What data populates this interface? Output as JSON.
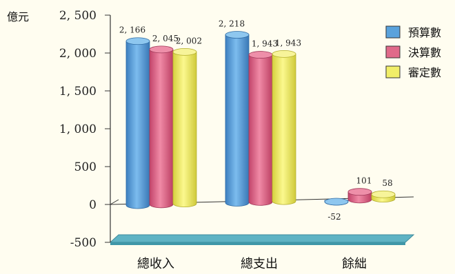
{
  "chart_data": {
    "type": "bar",
    "ylabel": "億元",
    "ylim": [
      -500,
      2500
    ],
    "yticks": [
      "2, 500",
      "2, 000",
      "1, 500",
      "1, 000",
      "500",
      "0",
      "-500"
    ],
    "ytick_values": [
      2500,
      2000,
      1500,
      1000,
      500,
      0,
      -500
    ],
    "categories": [
      "總收入",
      "總支出",
      "餘絀"
    ],
    "series": [
      {
        "name": "預算數",
        "color": "#5aa2dc",
        "values": [
          2166,
          2218,
          -52
        ],
        "labels": [
          "2, 166",
          "2, 218",
          "-52"
        ]
      },
      {
        "name": "決算數",
        "color": "#e06a8a",
        "values": [
          2045,
          1943,
          101
        ],
        "labels": [
          "2, 045",
          "1, 943",
          "101"
        ]
      },
      {
        "name": "審定數",
        "color": "#f1ee68",
        "values": [
          2002,
          1943,
          58
        ],
        "labels": [
          "2, 002",
          "1, 943",
          "58"
        ]
      }
    ],
    "legend_position": "top-right",
    "grid": false
  }
}
